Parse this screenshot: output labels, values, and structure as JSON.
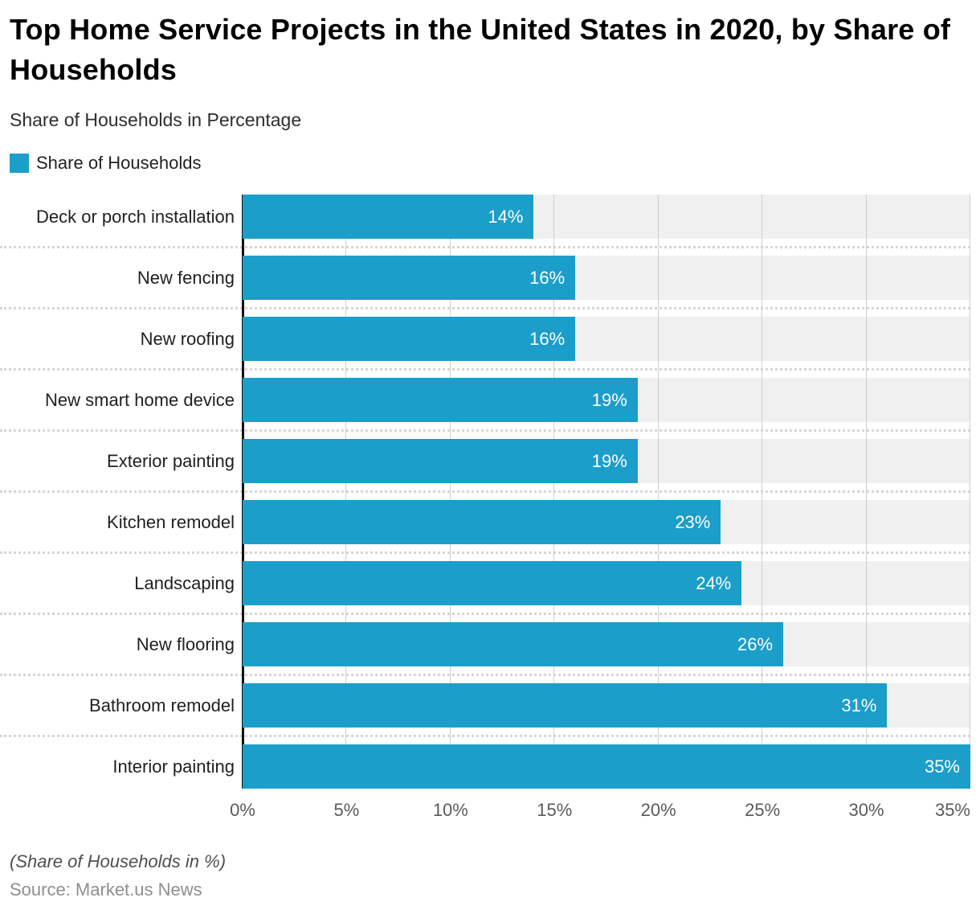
{
  "header": {
    "title": "Top Home Service Projects in the United States in 2020, by Share of Households",
    "subtitle": "Share of Households in Percentage"
  },
  "legend": {
    "label": "Share of Households",
    "swatch_color": "#1b9ec9"
  },
  "chart_data": {
    "type": "bar",
    "orientation": "horizontal",
    "title": "Top Home Service Projects in the United States in 2020, by Share of Households",
    "subtitle": "Share of Households in Percentage",
    "legend_entries": [
      "Share of Households"
    ],
    "legend_position": "top-left",
    "categories": [
      "Deck or porch installation",
      "New fencing",
      "New roofing",
      "New smart home device",
      "Exterior painting",
      "Kitchen remodel",
      "Landscaping",
      "New flooring",
      "Bathroom remodel",
      "Interior painting"
    ],
    "values": [
      14,
      16,
      16,
      19,
      19,
      23,
      24,
      26,
      31,
      35
    ],
    "value_labels": [
      "14%",
      "16%",
      "16%",
      "19%",
      "19%",
      "23%",
      "24%",
      "26%",
      "31%",
      "35%"
    ],
    "xlim": [
      0,
      35
    ],
    "x_tick_step": 5,
    "x_tick_labels": [
      "0%",
      "5%",
      "10%",
      "15%",
      "20%",
      "25%",
      "30%",
      "35%"
    ],
    "grid": true,
    "bar_color": "#1b9ec9",
    "track_color": "#f0f0f0",
    "gridline_color": "#cfcfcf",
    "value_label_color": "#ffffff"
  },
  "footer": {
    "note": "(Share of Households in %)",
    "source": "Source: Market.us News"
  }
}
